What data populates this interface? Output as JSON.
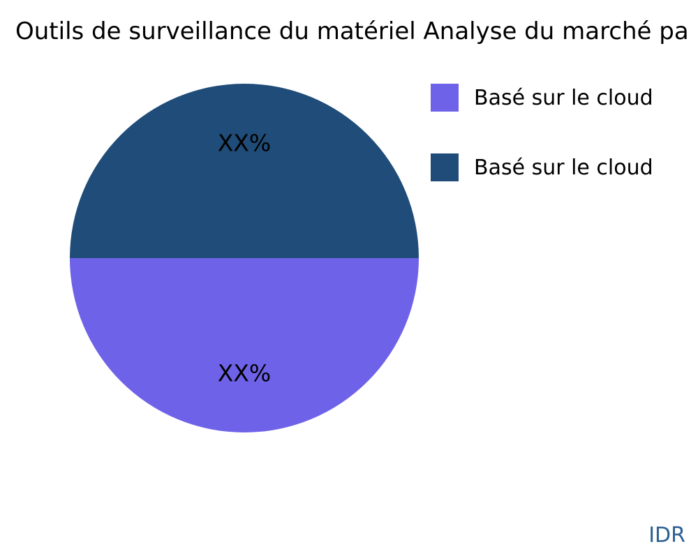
{
  "chart_data": {
    "type": "pie",
    "title": "Outils de surveillance du matériel Analyse du marché pa",
    "slices": [
      {
        "label": "Basé sur le cloud",
        "value": 50,
        "display_pct": "XX%",
        "color": "#6E62E8"
      },
      {
        "label": "Basé sur le cloud",
        "value": 50,
        "display_pct": "XX%",
        "color": "#1F4C78"
      }
    ],
    "start_angle_deg": 0,
    "direction": "clockwise",
    "label_distance": 0.66,
    "legend_position": "right",
    "label_color": "#000000",
    "background": "#ffffff"
  },
  "footer": {
    "watermark": "IDR",
    "color": "#2E6093"
  }
}
